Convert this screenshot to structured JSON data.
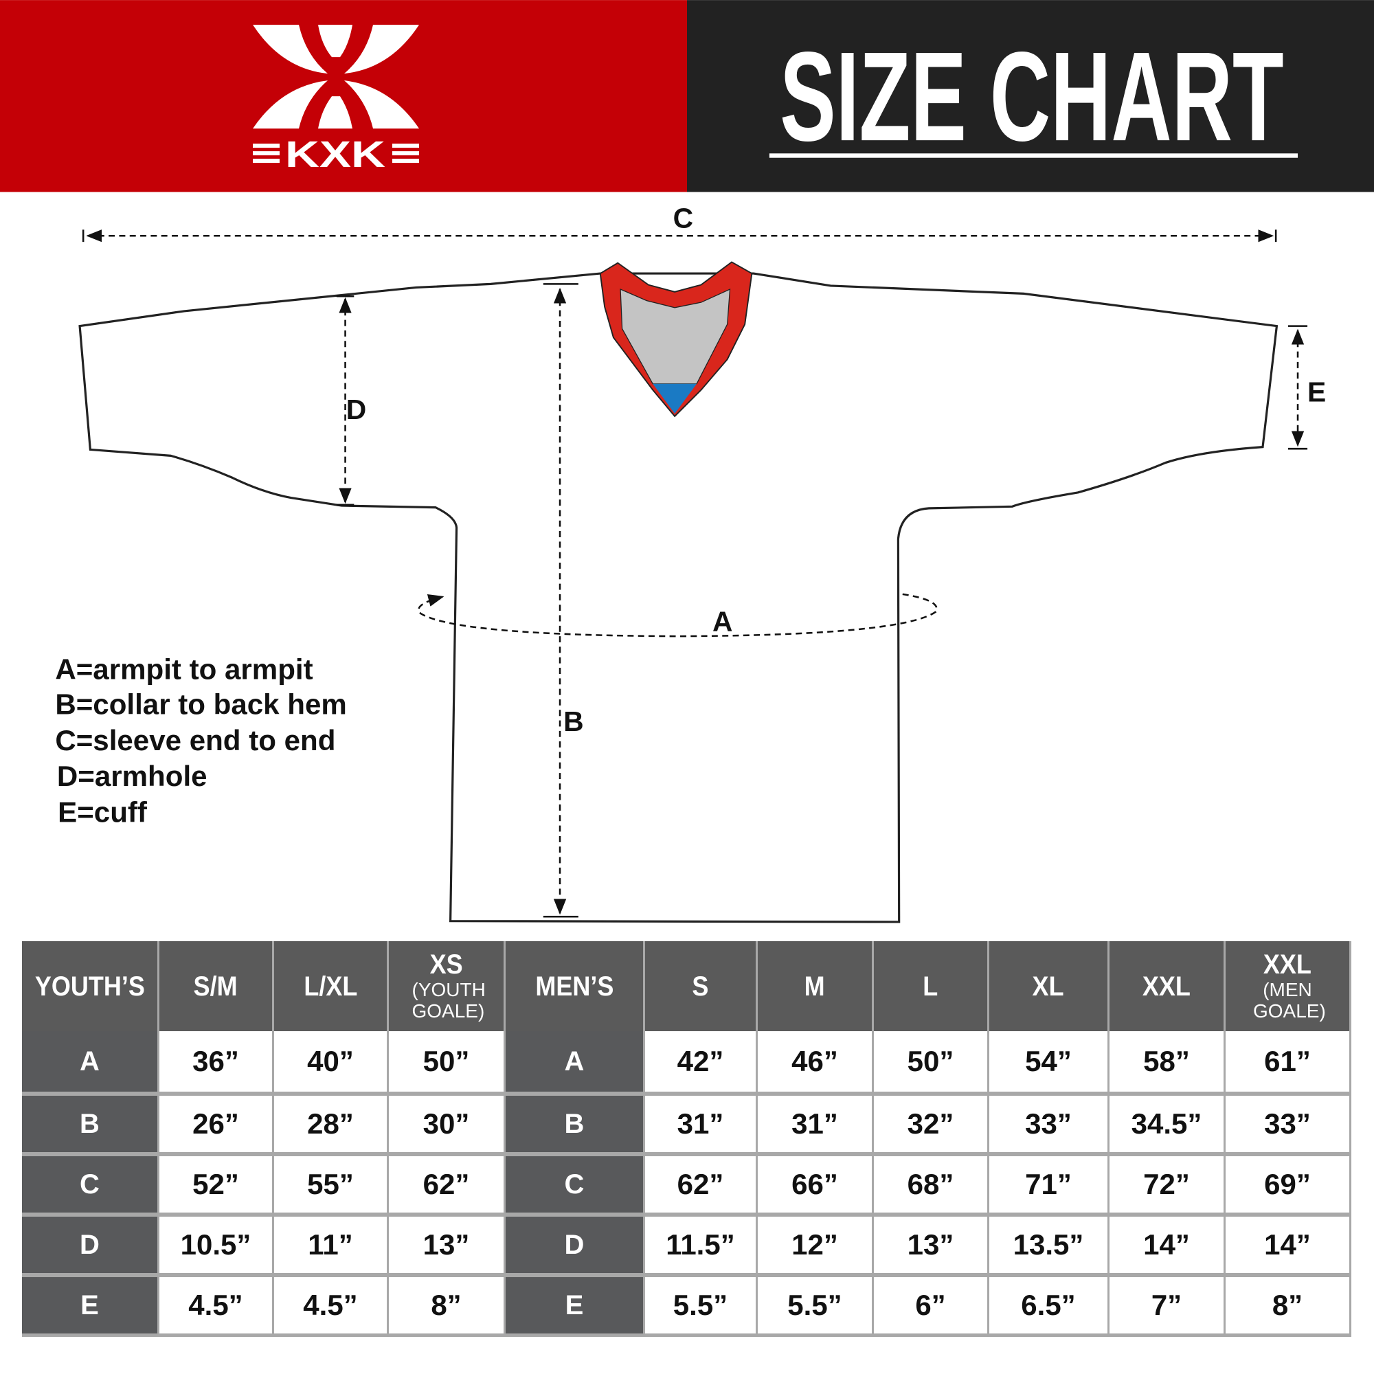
{
  "header": {
    "logo_text": "KXK",
    "title": "SIZE CHART",
    "colors": {
      "brand_red": "#c40006",
      "title_bg": "#222222"
    }
  },
  "diagram": {
    "labels": {
      "a": "A",
      "b": "B",
      "c": "C",
      "d": "D",
      "e": "E"
    },
    "collar_colors": {
      "trim": "#d9261c",
      "inner": "#c4c4c4",
      "tip": "#1a7ac4"
    },
    "legend": [
      "A=armpit to armpit",
      "B=collar to back hem",
      "C=sleeve end to end",
      "D=armhole",
      "E=cuff"
    ]
  },
  "table": {
    "headers": [
      {
        "main": "YOUTH’S"
      },
      {
        "main": "S/M"
      },
      {
        "main": "L/XL"
      },
      {
        "main": "XS",
        "sub": "(YOUTH GOALE)"
      },
      {
        "main": "MEN’S"
      },
      {
        "main": "S"
      },
      {
        "main": "M"
      },
      {
        "main": "L"
      },
      {
        "main": "XL"
      },
      {
        "main": "XXL"
      },
      {
        "main": "XXL",
        "sub": "(MEN GOALE)"
      }
    ],
    "rows": [
      {
        "label": "A",
        "youth": [
          "36”",
          "40”",
          "50”"
        ],
        "men": [
          "42”",
          "46”",
          "50”",
          "54”",
          "58”",
          "61”"
        ]
      },
      {
        "label": "B",
        "youth": [
          "26”",
          "28”",
          "30”"
        ],
        "men": [
          "31”",
          "31”",
          "32”",
          "33”",
          "34.5”",
          "33”"
        ]
      },
      {
        "label": "C",
        "youth": [
          "52”",
          "55”",
          "62”"
        ],
        "men": [
          "62”",
          "66”",
          "68”",
          "71”",
          "72”",
          "69”"
        ]
      },
      {
        "label": "D",
        "youth": [
          "10.5”",
          "11”",
          "13”"
        ],
        "men": [
          "11.5”",
          "12”",
          "13”",
          "13.5”",
          "14”",
          "14”"
        ]
      },
      {
        "label": "E",
        "youth": [
          "4.5”",
          "4.5”",
          "8”"
        ],
        "men": [
          "5.5”",
          "5.5”",
          "6”",
          "6.5”",
          "7”",
          "8”"
        ]
      }
    ]
  }
}
